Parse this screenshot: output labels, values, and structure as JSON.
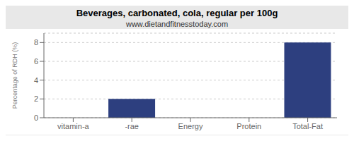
{
  "chart_data": {
    "type": "bar",
    "title": "Beverages, carbonated, cola, regular per 100g",
    "subtitle": "www.dietandfitnesstoday.com",
    "categories": [
      "vitamin-a",
      "-rae",
      "Energy",
      "Protein",
      "Total-Fat"
    ],
    "values": [
      0,
      2,
      0,
      0,
      8
    ],
    "color": "#2d3f7f",
    "ylabel": "Percentage of RDH (%)",
    "ylim": [
      0,
      9
    ],
    "yticks": [
      0,
      2,
      4,
      6,
      8
    ],
    "grid": true
  }
}
